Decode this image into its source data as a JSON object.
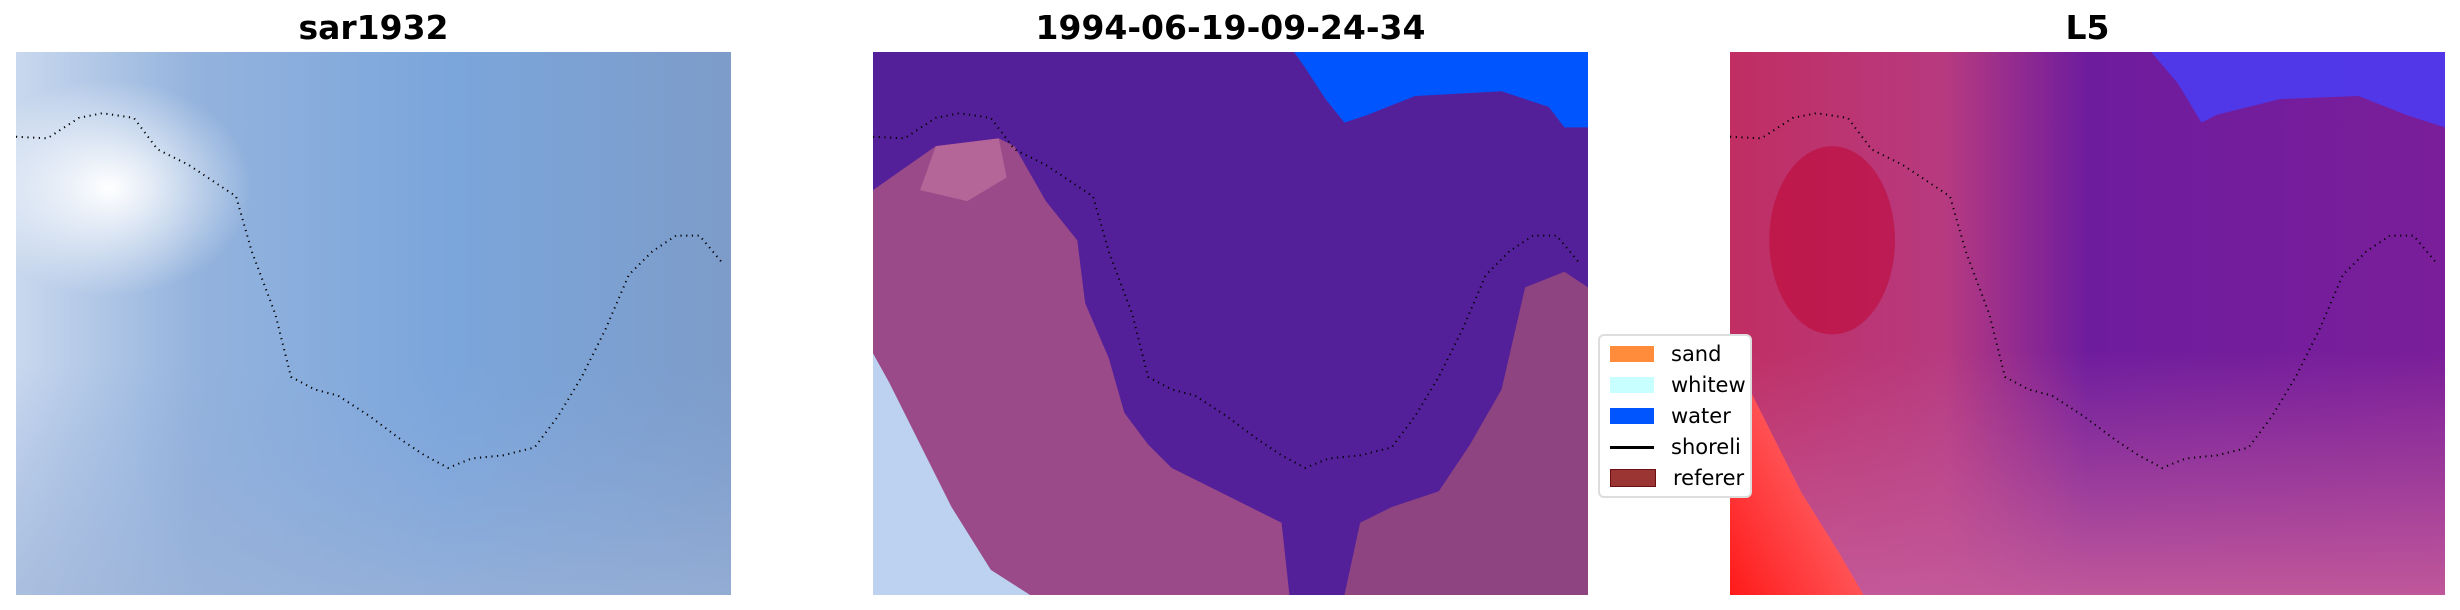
{
  "chart_data": [
    {
      "type": "image",
      "title": "sar1932"
    },
    {
      "type": "image",
      "title": "1994-06-19-09-24-34"
    },
    {
      "type": "image",
      "title": "L5"
    }
  ],
  "legend": {
    "placement": "center-left between panels 2 and 3 (clipped)",
    "items": [
      {
        "label": "sand",
        "color": "#FF8C3A",
        "kind": "patch"
      },
      {
        "label": "whitew",
        "color": "#C8FFFF",
        "kind": "patch"
      },
      {
        "label": "water",
        "color": "#0055FF",
        "kind": "patch"
      },
      {
        "label": "shoreli",
        "color": "#000000",
        "kind": "line"
      },
      {
        "label": "referer",
        "color": "#9A3533",
        "kind": "patch"
      }
    ]
  },
  "colors": {
    "water": "#0055FF",
    "sea_class": "#54209A",
    "land_class": "#9A4A88"
  }
}
